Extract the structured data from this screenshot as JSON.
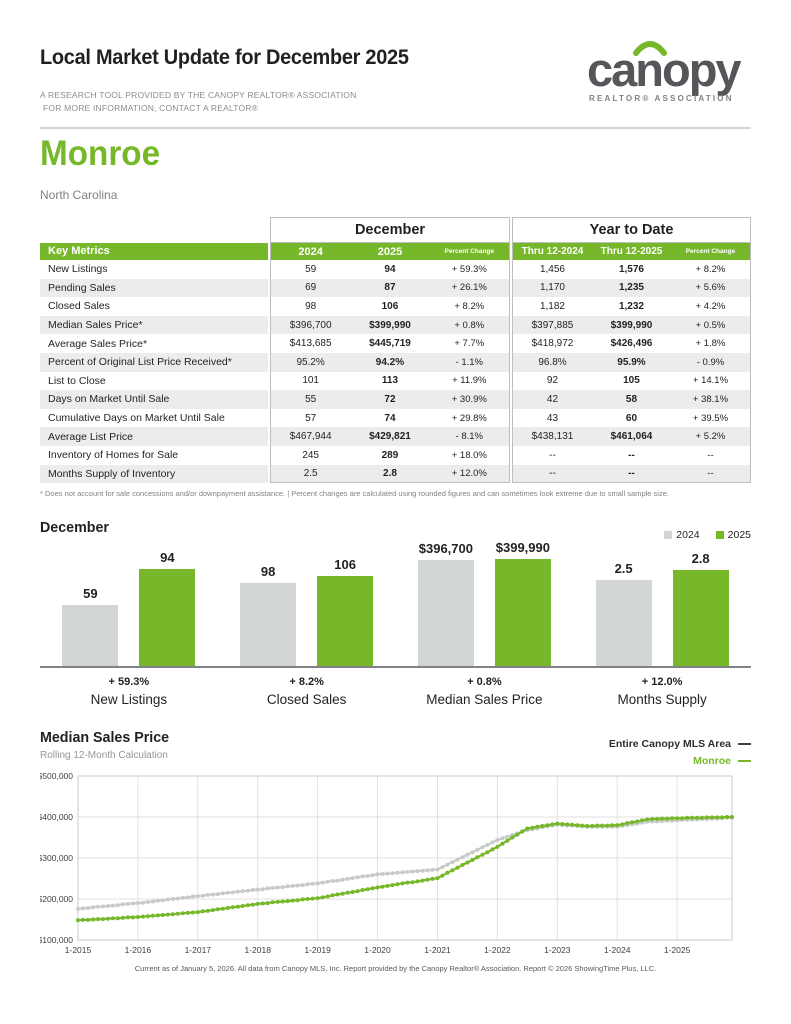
{
  "page": {
    "title": "Local Market Update for December 2025",
    "subtitle_line1": "A RESEARCH TOOL PROVIDED BY THE CANOPY REALTOR® ASSOCIATION",
    "subtitle_line2": "FOR MORE INFORMATION, CONTACT A REALTOR®",
    "footer": "Current as of January 5, 2026. All data from Canopy MLS, Inc. Report provided by the Canopy Realtor® Association. Report © 2026 ShowingTime Plus, LLC."
  },
  "logo": {
    "brand": "canopy",
    "tagline": "REALTOR® ASSOCIATION"
  },
  "location": {
    "name": "Monroe",
    "state": "North Carolina"
  },
  "colors": {
    "green": "#76b82a",
    "bar_gray": "#d1d5d3",
    "line_gray": "#c8ccc9",
    "row_stripe": "#ececed",
    "text_gray": "#808285",
    "dark": "#231f20"
  },
  "table": {
    "group_headers": [
      "December",
      "Year to Date"
    ],
    "header": {
      "key_metrics": "Key Metrics",
      "dec_cols": [
        "2024",
        "2025",
        "Percent Change"
      ],
      "ytd_cols": [
        "Thru 12-2024",
        "Thru 12-2025",
        "Percent Change"
      ]
    },
    "rows": [
      {
        "metric": "New Listings",
        "d24": "59",
        "d25": "94",
        "dchg": "+ 59.3%",
        "y24": "1,456",
        "y25": "1,576",
        "ychg": "+ 8.2%"
      },
      {
        "metric": "Pending Sales",
        "d24": "69",
        "d25": "87",
        "dchg": "+ 26.1%",
        "y24": "1,170",
        "y25": "1,235",
        "ychg": "+ 5.6%"
      },
      {
        "metric": "Closed Sales",
        "d24": "98",
        "d25": "106",
        "dchg": "+ 8.2%",
        "y24": "1,182",
        "y25": "1,232",
        "ychg": "+ 4.2%"
      },
      {
        "metric": "Median Sales Price*",
        "d24": "$396,700",
        "d25": "$399,990",
        "dchg": "+ 0.8%",
        "y24": "$397,885",
        "y25": "$399,990",
        "ychg": "+ 0.5%"
      },
      {
        "metric": "Average Sales Price*",
        "d24": "$413,685",
        "d25": "$445,719",
        "dchg": "+ 7.7%",
        "y24": "$418,972",
        "y25": "$426,496",
        "ychg": "+ 1.8%"
      },
      {
        "metric": "Percent of Original List Price Received*",
        "d24": "95.2%",
        "d25": "94.2%",
        "dchg": "- 1.1%",
        "y24": "96.8%",
        "y25": "95.9%",
        "ychg": "- 0.9%"
      },
      {
        "metric": "List to Close",
        "d24": "101",
        "d25": "113",
        "dchg": "+ 11.9%",
        "y24": "92",
        "y25": "105",
        "ychg": "+ 14.1%"
      },
      {
        "metric": "Days on Market Until Sale",
        "d24": "55",
        "d25": "72",
        "dchg": "+ 30.9%",
        "y24": "42",
        "y25": "58",
        "ychg": "+ 38.1%"
      },
      {
        "metric": "Cumulative Days on Market Until Sale",
        "d24": "57",
        "d25": "74",
        "dchg": "+ 29.8%",
        "y24": "43",
        "y25": "60",
        "ychg": "+ 39.5%"
      },
      {
        "metric": "Average List Price",
        "d24": "$467,944",
        "d25": "$429,821",
        "dchg": "- 8.1%",
        "y24": "$438,131",
        "y25": "$461,064",
        "ychg": "+ 5.2%"
      },
      {
        "metric": "Inventory of Homes for Sale",
        "d24": "245",
        "d25": "289",
        "dchg": "+ 18.0%",
        "y24": "--",
        "y25": "--",
        "ychg": "--"
      },
      {
        "metric": "Months Supply of Inventory",
        "d24": "2.5",
        "d25": "2.8",
        "dchg": "+ 12.0%",
        "y24": "--",
        "y25": "--",
        "ychg": "--"
      }
    ],
    "footnote": "* Does not account for sale concessions and/or downpayment assistance.  |  Percent changes are calculated using rounded figures and can sometimes look extreme due to small sample size."
  },
  "chart_data": [
    {
      "type": "bar",
      "title": "December",
      "categories": [
        "New Listings",
        "Closed Sales",
        "Median Sales Price",
        "Months Supply"
      ],
      "series": [
        {
          "name": "2024",
          "color": "#d1d5d3",
          "values": [
            59,
            98,
            396700,
            2.5
          ],
          "labels": [
            "59",
            "98",
            "$396,700",
            "2.5"
          ]
        },
        {
          "name": "2025",
          "color": "#76b82a",
          "values": [
            94,
            106,
            399990,
            2.8
          ],
          "labels": [
            "94",
            "106",
            "$399,990",
            "2.8"
          ]
        }
      ],
      "pct_change": [
        "+ 59.3%",
        "+ 8.2%",
        "+ 0.8%",
        "+ 12.0%"
      ],
      "legend_position": "top-right",
      "note": "bars within each category pair are scaled relative to the larger value"
    },
    {
      "type": "line",
      "title": "Median Sales Price",
      "subtitle": "Rolling 12-Month Calculation",
      "x_interval": "monthly",
      "x_start": "1-2015",
      "x_end": "12-2025",
      "x_ticks": [
        "1-2015",
        "1-2016",
        "1-2017",
        "1-2018",
        "1-2019",
        "1-2020",
        "1-2021",
        "1-2022",
        "1-2023",
        "1-2024",
        "1-2025"
      ],
      "y_ticks": [
        "$100,000",
        "$200,000",
        "$300,000",
        "$400,000",
        "$500,000"
      ],
      "ylim_thousands": [
        100,
        500
      ],
      "values_unit": "USD thousands (approximate, read from plot)",
      "legend_position": "top-right",
      "grid": true,
      "series": [
        {
          "name": "Entire Canopy MLS Area",
          "color": "#c8ccc9",
          "values": [
            176,
            177,
            178,
            180,
            181,
            182,
            183,
            184,
            185,
            187,
            188,
            189,
            190,
            191,
            193,
            194,
            196,
            197,
            199,
            200,
            201,
            203,
            204,
            206,
            207,
            208,
            210,
            211,
            212,
            214,
            215,
            216,
            218,
            219,
            220,
            222,
            223,
            224,
            226,
            227,
            228,
            229,
            231,
            232,
            233,
            234,
            236,
            237,
            238,
            240,
            242,
            244,
            245,
            247,
            249,
            251,
            253,
            255,
            256,
            258,
            260,
            261,
            262,
            263,
            264,
            265,
            266,
            267,
            268,
            269,
            270,
            271,
            272,
            278,
            284,
            290,
            296,
            302,
            308,
            314,
            320,
            326,
            332,
            338,
            344,
            348,
            352,
            356,
            360,
            364,
            368,
            370,
            372,
            375,
            377,
            379,
            381,
            380,
            379,
            379,
            378,
            377,
            376,
            376,
            376,
            376,
            376,
            376,
            376,
            378,
            380,
            382,
            384,
            386,
            388,
            389,
            389,
            390,
            391,
            391,
            392,
            393,
            393,
            394,
            394,
            395,
            395,
            396,
            396,
            397,
            398,
            398
          ]
        },
        {
          "name": "Monroe",
          "color": "#76b82a",
          "values": [
            148,
            149,
            149,
            150,
            151,
            151,
            152,
            153,
            153,
            154,
            155,
            155,
            156,
            157,
            158,
            159,
            160,
            161,
            162,
            163,
            164,
            165,
            166,
            167,
            168,
            170,
            171,
            173,
            175,
            176,
            178,
            180,
            181,
            183,
            185,
            186,
            188,
            189,
            190,
            192,
            193,
            194,
            195,
            196,
            197,
            199,
            200,
            201,
            202,
            204,
            206,
            209,
            211,
            213,
            215,
            217,
            219,
            222,
            224,
            226,
            228,
            230,
            232,
            234,
            236,
            238,
            240,
            241,
            243,
            245,
            247,
            249,
            251,
            257,
            264,
            270,
            276,
            283,
            289,
            295,
            302,
            308,
            314,
            321,
            327,
            335,
            342,
            350,
            357,
            365,
            372,
            374,
            376,
            378,
            380,
            382,
            384,
            383,
            382,
            381,
            380,
            379,
            378,
            378,
            379,
            379,
            379,
            380,
            380,
            382,
            385,
            387,
            389,
            392,
            394,
            395,
            395,
            396,
            396,
            397,
            397,
            397,
            398,
            398,
            398,
            398,
            399,
            399,
            399,
            399,
            400,
            400
          ]
        }
      ]
    }
  ]
}
